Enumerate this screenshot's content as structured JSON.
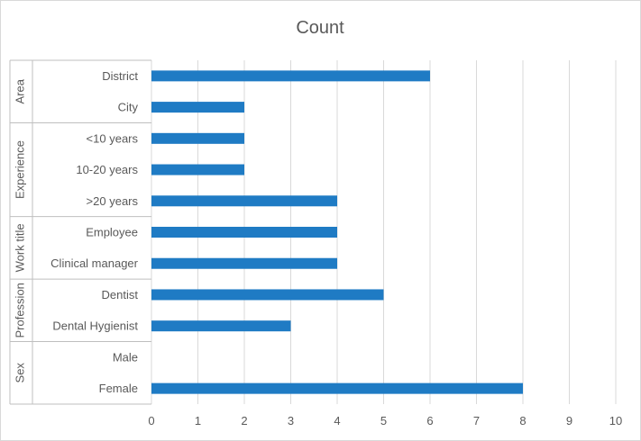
{
  "chart_data": {
    "type": "bar",
    "orientation": "horizontal",
    "title": "Count",
    "xlim": [
      0,
      10
    ],
    "x_ticks": [
      "0",
      "1",
      "2",
      "3",
      "4",
      "5",
      "6",
      "7",
      "8",
      "9",
      "10"
    ],
    "grid": "vertical",
    "legend": "none",
    "bar_color": "#1f7bc4",
    "groups": [
      {
        "name": "Area",
        "categories": [
          "District",
          "City"
        ],
        "values": [
          6,
          2
        ]
      },
      {
        "name": "Experience",
        "categories": [
          "<10 years",
          "10-20 years",
          ">20 years"
        ],
        "values": [
          2,
          2,
          4
        ]
      },
      {
        "name": "Work title",
        "categories": [
          "Employee",
          "Clinical manager"
        ],
        "values": [
          4,
          4
        ]
      },
      {
        "name": "Profession",
        "categories": [
          "Dentist",
          "Dental Hygienist"
        ],
        "values": [
          5,
          3
        ]
      },
      {
        "name": "Sex",
        "categories": [
          "Male",
          "Female"
        ],
        "values": [
          0,
          8
        ]
      }
    ]
  }
}
